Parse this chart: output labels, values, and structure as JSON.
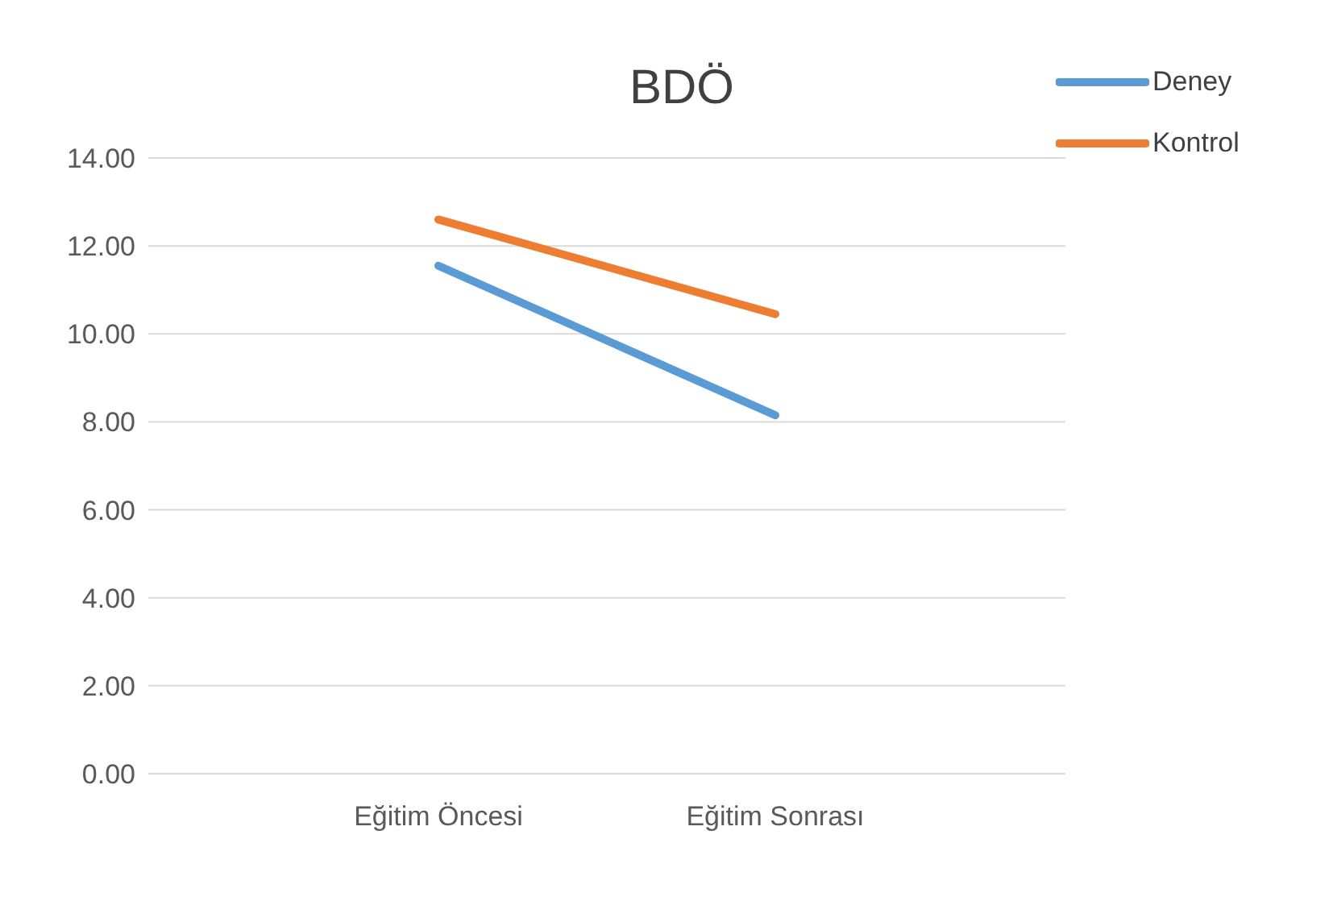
{
  "chart_data": {
    "type": "line",
    "title": "BDÖ",
    "categories": [
      "Eğitim Öncesi",
      "Eğitim Sonrası"
    ],
    "series": [
      {
        "name": "Deney",
        "color": "#5b9bd5",
        "values": [
          11.55,
          8.15
        ]
      },
      {
        "name": "Kontrol",
        "color": "#ed7d31",
        "values": [
          12.6,
          10.45
        ]
      }
    ],
    "ylim": [
      0,
      14
    ],
    "yticks": [
      {
        "value": 0,
        "label": "0.00"
      },
      {
        "value": 2,
        "label": "2.00"
      },
      {
        "value": 4,
        "label": "4.00"
      },
      {
        "value": 6,
        "label": "6.00"
      },
      {
        "value": 8,
        "label": "8.00"
      },
      {
        "value": 10,
        "label": "10.00"
      },
      {
        "value": 12,
        "label": "12.00"
      },
      {
        "value": 14,
        "label": "14.00"
      }
    ],
    "grid": "y",
    "legend": "top right",
    "marker": "none",
    "line_style": "solid"
  }
}
